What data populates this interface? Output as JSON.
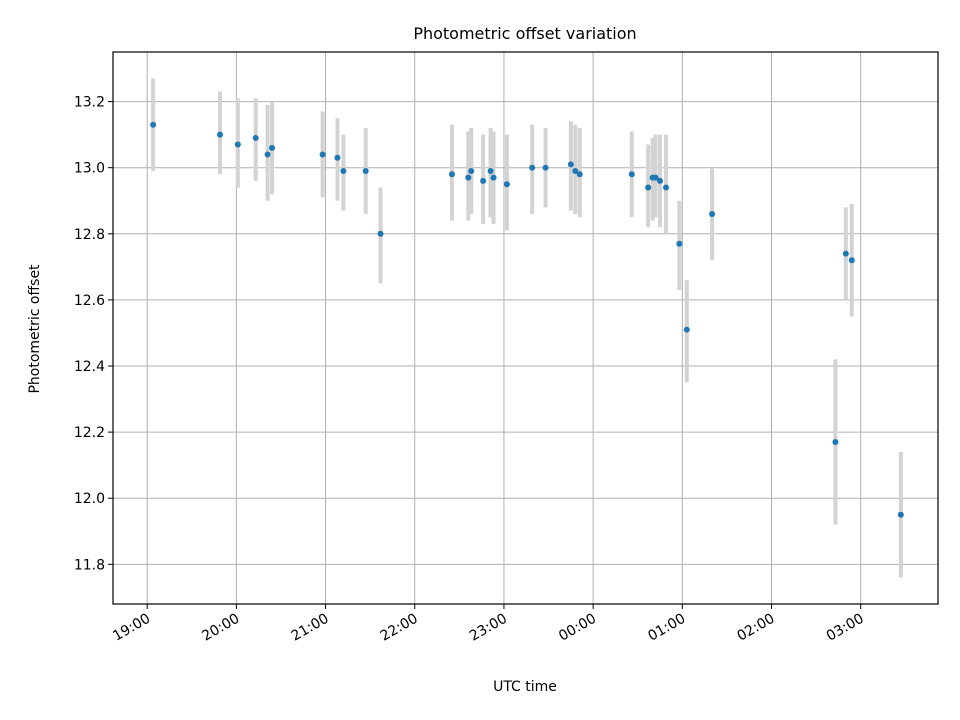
{
  "chart_data": {
    "type": "scatter",
    "title": "Photometric offset variation",
    "xlabel": "UTC time",
    "ylabel": "Photometric offset",
    "xlim": [
      "18:37",
      "03:52"
    ],
    "ylim": [
      11.68,
      13.35
    ],
    "x_ticks": [
      "19:00",
      "20:00",
      "21:00",
      "22:00",
      "23:00",
      "00:00",
      "01:00",
      "02:00",
      "03:00"
    ],
    "y_ticks": [
      "11.8",
      "12.0",
      "12.2",
      "12.4",
      "12.6",
      "12.8",
      "13.0",
      "13.2"
    ],
    "grid": true,
    "marker_color": "#1f77b4",
    "errorbar_color": "#d3d3d3",
    "points": [
      {
        "t": "19:04",
        "y": 13.13,
        "lo": 12.99,
        "hi": 13.27
      },
      {
        "t": "19:49",
        "y": 13.1,
        "lo": 12.98,
        "hi": 13.23
      },
      {
        "t": "20:01",
        "y": 13.07,
        "lo": 12.94,
        "hi": 13.21
      },
      {
        "t": "20:13",
        "y": 13.09,
        "lo": 12.96,
        "hi": 13.21
      },
      {
        "t": "20:21",
        "y": 13.04,
        "lo": 12.9,
        "hi": 13.19
      },
      {
        "t": "20:24",
        "y": 13.06,
        "lo": 12.92,
        "hi": 13.2
      },
      {
        "t": "20:58",
        "y": 13.04,
        "lo": 12.91,
        "hi": 13.17
      },
      {
        "t": "21:08",
        "y": 13.03,
        "lo": 12.9,
        "hi": 13.15
      },
      {
        "t": "21:12",
        "y": 12.99,
        "lo": 12.87,
        "hi": 13.1
      },
      {
        "t": "21:27",
        "y": 12.99,
        "lo": 12.86,
        "hi": 13.12
      },
      {
        "t": "21:37",
        "y": 12.8,
        "lo": 12.65,
        "hi": 12.94
      },
      {
        "t": "22:25",
        "y": 12.98,
        "lo": 12.84,
        "hi": 13.13
      },
      {
        "t": "22:36",
        "y": 12.97,
        "lo": 12.84,
        "hi": 13.11
      },
      {
        "t": "22:38",
        "y": 12.99,
        "lo": 12.86,
        "hi": 13.12
      },
      {
        "t": "22:46",
        "y": 12.96,
        "lo": 12.83,
        "hi": 13.1
      },
      {
        "t": "22:51",
        "y": 12.99,
        "lo": 12.85,
        "hi": 13.12
      },
      {
        "t": "22:53",
        "y": 12.97,
        "lo": 12.83,
        "hi": 13.11
      },
      {
        "t": "23:02",
        "y": 12.95,
        "lo": 12.81,
        "hi": 13.1
      },
      {
        "t": "23:19",
        "y": 13.0,
        "lo": 12.86,
        "hi": 13.13
      },
      {
        "t": "23:28",
        "y": 13.0,
        "lo": 12.88,
        "hi": 13.12
      },
      {
        "t": "23:45",
        "y": 13.01,
        "lo": 12.87,
        "hi": 13.14
      },
      {
        "t": "23:48",
        "y": 12.99,
        "lo": 12.86,
        "hi": 13.13
      },
      {
        "t": "23:51",
        "y": 12.98,
        "lo": 12.85,
        "hi": 13.12
      },
      {
        "t": "00:26",
        "y": 12.98,
        "lo": 12.85,
        "hi": 13.11
      },
      {
        "t": "00:37",
        "y": 12.94,
        "lo": 12.82,
        "hi": 13.07
      },
      {
        "t": "00:40",
        "y": 12.97,
        "lo": 12.84,
        "hi": 13.09
      },
      {
        "t": "00:42",
        "y": 12.97,
        "lo": 12.85,
        "hi": 13.1
      },
      {
        "t": "00:45",
        "y": 12.96,
        "lo": 12.82,
        "hi": 13.1
      },
      {
        "t": "00:49",
        "y": 12.94,
        "lo": 12.8,
        "hi": 13.1
      },
      {
        "t": "00:58",
        "y": 12.77,
        "lo": 12.63,
        "hi": 12.9
      },
      {
        "t": "01:03",
        "y": 12.51,
        "lo": 12.35,
        "hi": 12.66
      },
      {
        "t": "01:20",
        "y": 12.86,
        "lo": 12.72,
        "hi": 13.0
      },
      {
        "t": "02:43",
        "y": 12.17,
        "lo": 11.92,
        "hi": 12.42
      },
      {
        "t": "02:50",
        "y": 12.74,
        "lo": 12.6,
        "hi": 12.88
      },
      {
        "t": "02:54",
        "y": 12.72,
        "lo": 12.55,
        "hi": 12.89
      },
      {
        "t": "03:27",
        "y": 11.95,
        "lo": 11.76,
        "hi": 12.14
      }
    ]
  }
}
